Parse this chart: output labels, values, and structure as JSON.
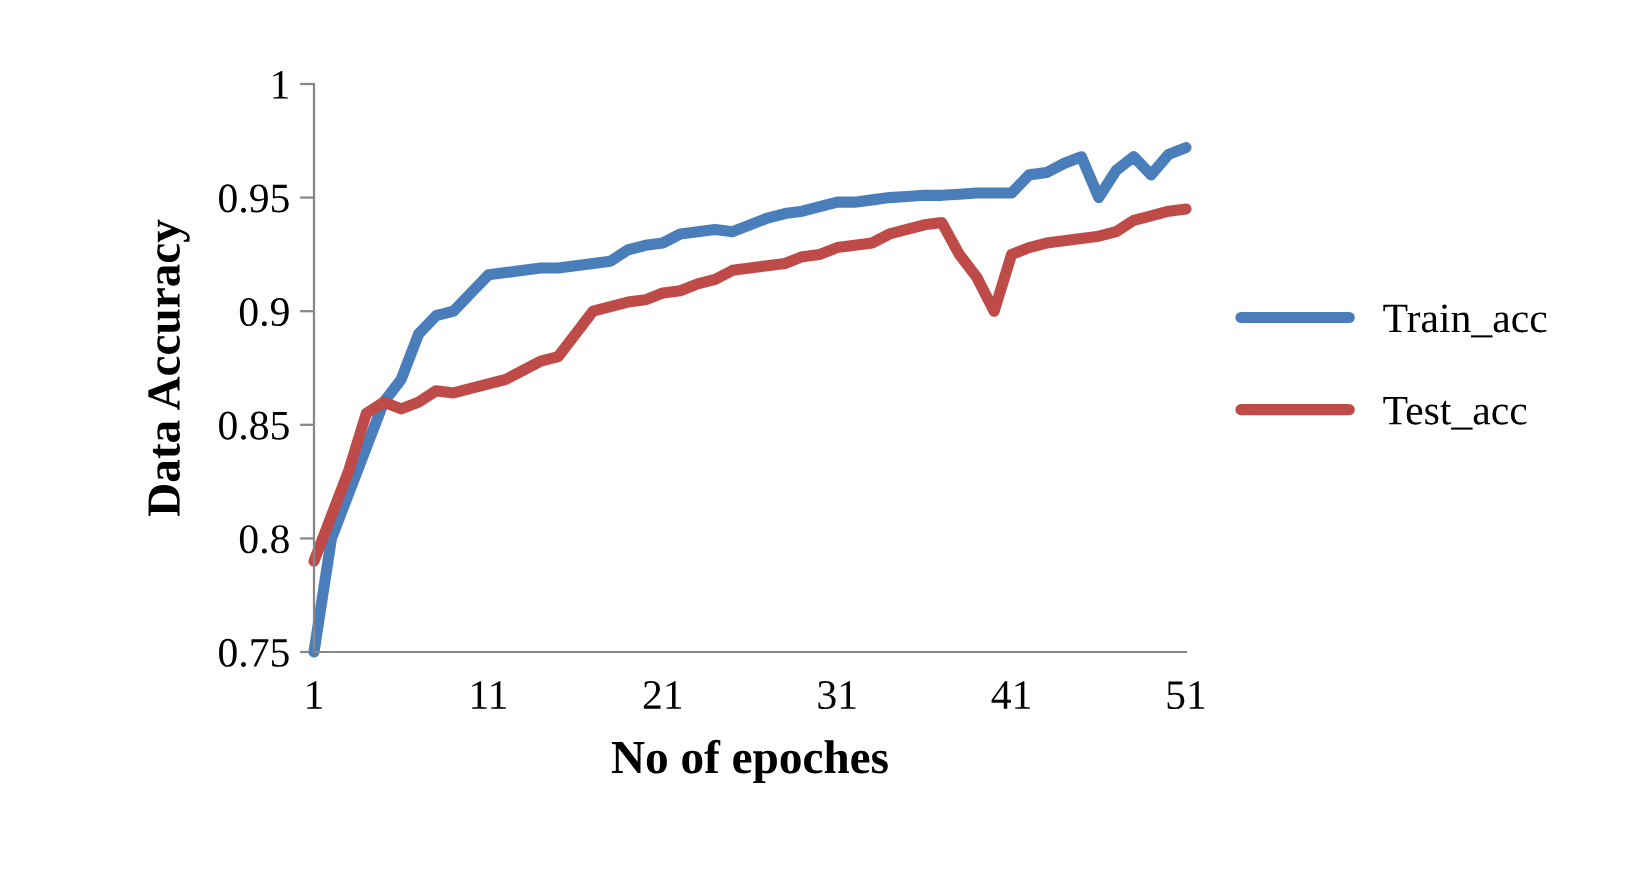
{
  "chart_data": {
    "type": "line",
    "xlabel": "No of epoches",
    "ylabel": "Data Accuracy",
    "x": [
      1,
      2,
      3,
      4,
      5,
      6,
      7,
      8,
      9,
      10,
      11,
      12,
      13,
      14,
      15,
      16,
      17,
      18,
      19,
      20,
      21,
      22,
      23,
      24,
      25,
      26,
      27,
      28,
      29,
      30,
      31,
      32,
      33,
      34,
      35,
      36,
      37,
      38,
      39,
      40,
      41,
      42,
      43,
      44,
      45,
      46,
      47,
      48,
      49,
      50,
      51
    ],
    "series": [
      {
        "name": "Train_acc",
        "color": "#4a7ebb",
        "values": [
          0.75,
          0.8,
          0.82,
          0.84,
          0.86,
          0.87,
          0.89,
          0.898,
          0.9,
          0.908,
          0.916,
          0.917,
          0.918,
          0.919,
          0.919,
          0.92,
          0.921,
          0.922,
          0.927,
          0.929,
          0.93,
          0.934,
          0.935,
          0.936,
          0.935,
          0.938,
          0.941,
          0.943,
          0.944,
          0.946,
          0.948,
          0.948,
          0.949,
          0.95,
          0.9505,
          0.951,
          0.951,
          0.9515,
          0.952,
          0.952,
          0.952,
          0.96,
          0.961,
          0.965,
          0.968,
          0.95,
          0.962,
          0.968,
          0.96,
          0.969,
          0.972
        ]
      },
      {
        "name": "Test_acc",
        "color": "#be4b48",
        "values": [
          0.79,
          0.81,
          0.83,
          0.855,
          0.86,
          0.857,
          0.86,
          0.865,
          0.864,
          0.866,
          0.868,
          0.87,
          0.874,
          0.878,
          0.88,
          0.89,
          0.9,
          0.902,
          0.904,
          0.905,
          0.908,
          0.909,
          0.912,
          0.914,
          0.918,
          0.919,
          0.92,
          0.921,
          0.924,
          0.925,
          0.928,
          0.929,
          0.93,
          0.934,
          0.936,
          0.938,
          0.939,
          0.925,
          0.915,
          0.9,
          0.925,
          0.928,
          0.93,
          0.931,
          0.932,
          0.933,
          0.935,
          0.94,
          0.942,
          0.944,
          0.945
        ]
      }
    ],
    "xlim": [
      1,
      51
    ],
    "xticks": [
      1,
      11,
      21,
      31,
      41,
      51
    ],
    "ylim": [
      0.75,
      1
    ],
    "yticks": [
      0.75,
      0.8,
      0.85,
      0.9,
      0.95,
      1
    ],
    "grid": false,
    "legend": "right",
    "marker": "none",
    "line_style": "solid"
  }
}
